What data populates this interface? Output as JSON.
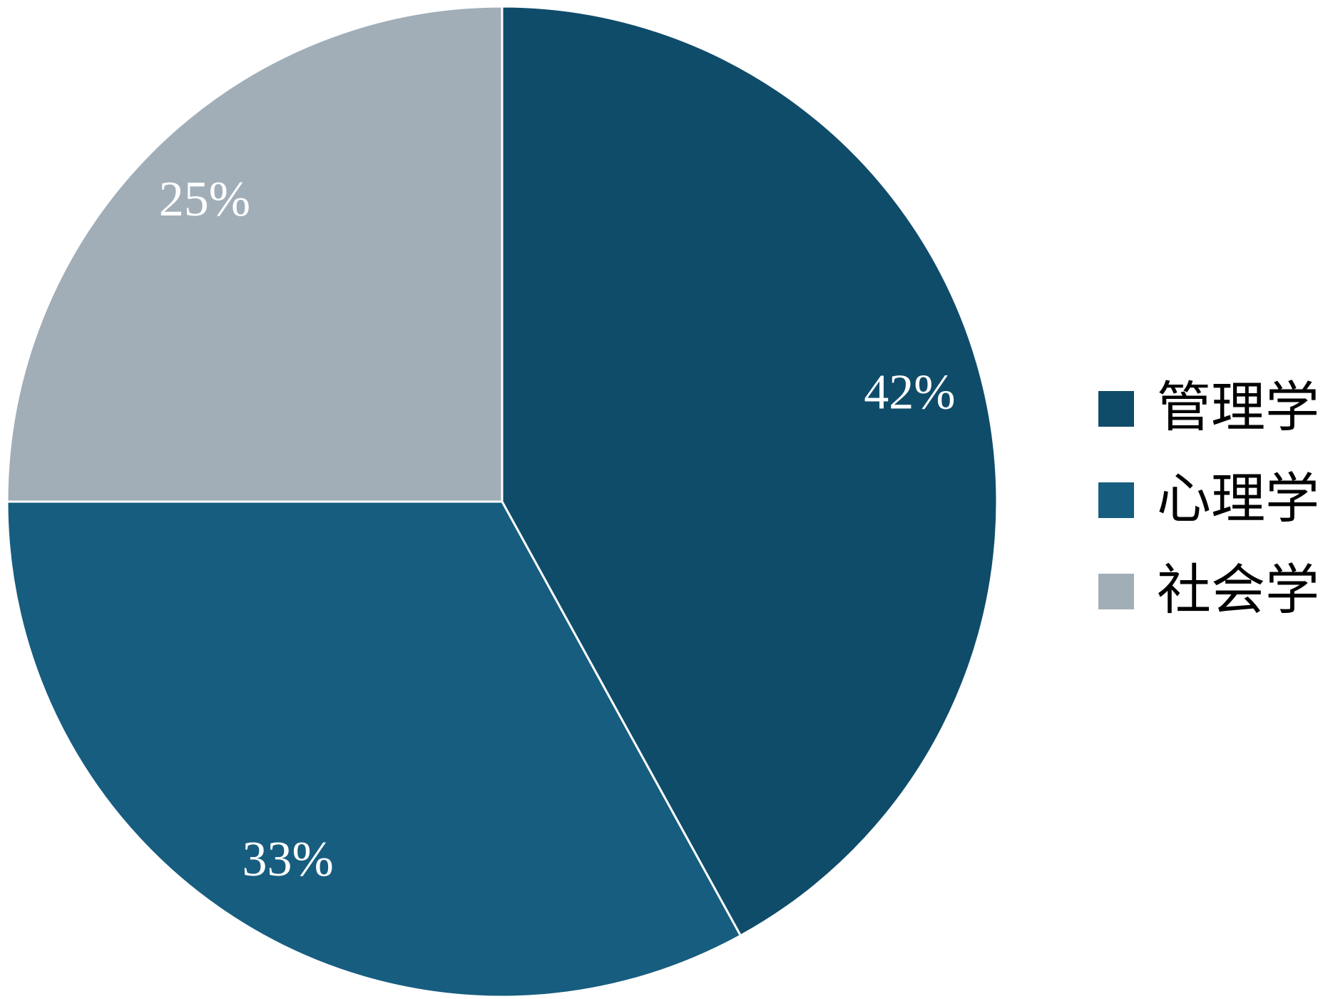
{
  "chart_data": {
    "type": "pie",
    "categories": [
      "管理学",
      "心理学",
      "社会学"
    ],
    "values": [
      42,
      33,
      25
    ],
    "value_labels": [
      "42%",
      "33%",
      "25%"
    ],
    "colors": [
      "#0f4c6a",
      "#175d7f",
      "#a1aeb8"
    ],
    "legend": "right"
  }
}
